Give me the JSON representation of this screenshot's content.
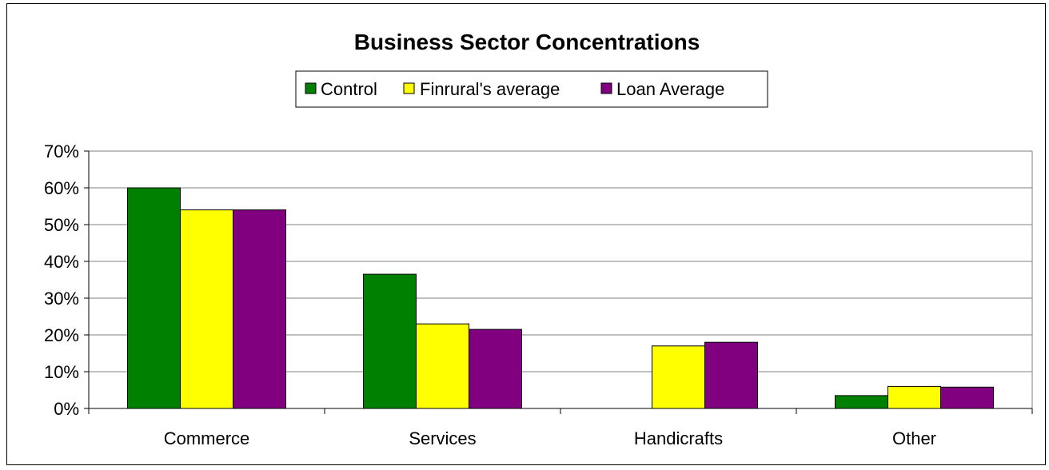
{
  "chart_data": {
    "type": "bar",
    "title": "Business Sector Concentrations",
    "categories": [
      "Commerce",
      "Services",
      "Handicrafts",
      "Other"
    ],
    "series": [
      {
        "name": "Control",
        "color": "#008000",
        "values": [
          60,
          36.5,
          0,
          3.5
        ]
      },
      {
        "name": "Finrural's average",
        "color": "#ffff00",
        "values": [
          54,
          23,
          17,
          6
        ]
      },
      {
        "name": "Loan Average",
        "color": "#800080",
        "values": [
          54,
          21.5,
          18,
          5.8
        ]
      }
    ],
    "ylim": [
      0,
      70
    ],
    "yticks": [
      0,
      10,
      20,
      30,
      40,
      50,
      60,
      70
    ],
    "ytick_labels": [
      "0%",
      "10%",
      "20%",
      "30%",
      "40%",
      "50%",
      "60%",
      "70%"
    ],
    "grid": true,
    "legend_position": "top-center",
    "xlabel": "",
    "ylabel": ""
  }
}
